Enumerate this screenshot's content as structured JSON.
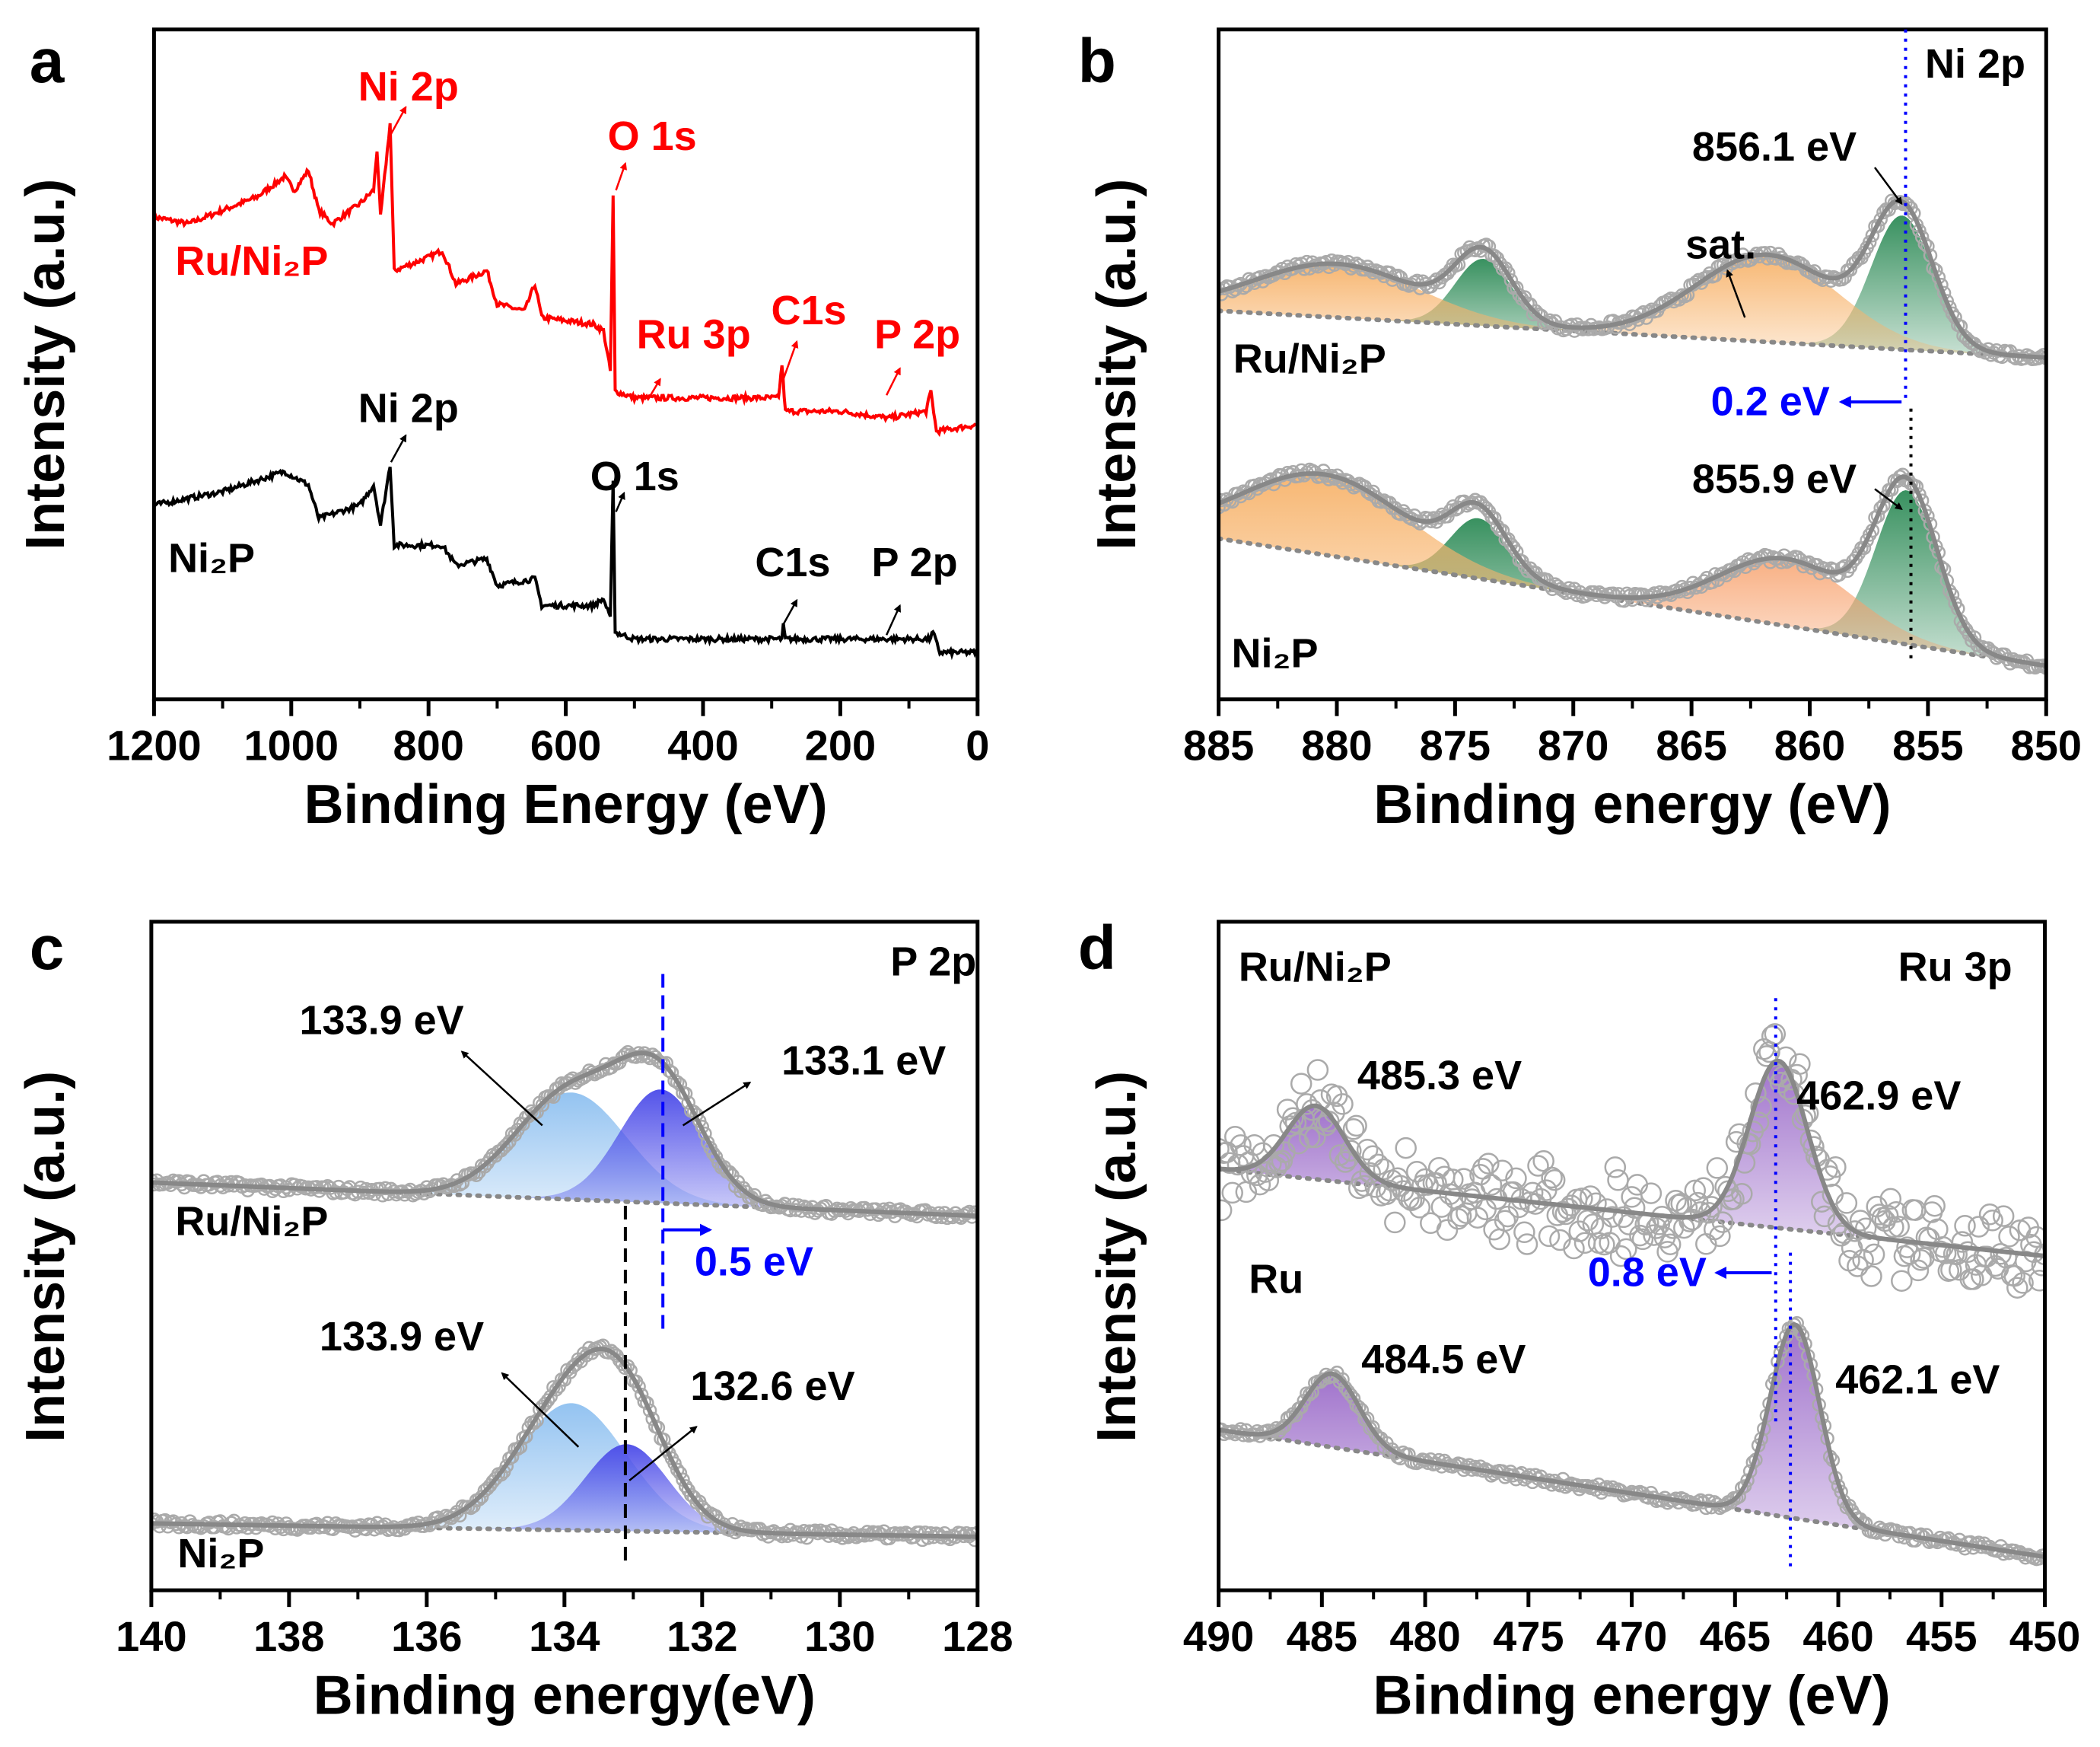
{
  "chart_data": [
    {
      "panel": "a",
      "type": "line",
      "title": "",
      "xlabel": "Binding Energy (eV)",
      "ylabel": "Intensity (a.u.)",
      "xlim": [
        1200,
        0
      ],
      "ylim": [
        0,
        1
      ],
      "xticks": [
        1200,
        1000,
        800,
        600,
        400,
        200,
        0
      ],
      "xminor": 100,
      "grid": false,
      "series": [
        {
          "name": "Ru/Ni₂P",
          "color": "#ff0000",
          "points": [
            [
              1200,
              0.72
            ],
            [
              1150,
              0.71
            ],
            [
              1100,
              0.73
            ],
            [
              1050,
              0.75
            ],
            [
              1010,
              0.78
            ],
            [
              995,
              0.76
            ],
            [
              975,
              0.79
            ],
            [
              960,
              0.73
            ],
            [
              940,
              0.71
            ],
            [
              900,
              0.74
            ],
            [
              880,
              0.76
            ],
            [
              875,
              0.82
            ],
            [
              870,
              0.72
            ],
            [
              862,
              0.8
            ],
            [
              856,
              0.86
            ],
            [
              850,
              0.64
            ],
            [
              800,
              0.66
            ],
            [
              780,
              0.67
            ],
            [
              760,
              0.62
            ],
            [
              715,
              0.64
            ],
            [
              700,
              0.59
            ],
            [
              660,
              0.58
            ],
            [
              645,
              0.62
            ],
            [
              635,
              0.57
            ],
            [
              560,
              0.56
            ],
            [
              545,
              0.55
            ],
            [
              535,
              0.49
            ],
            [
              531,
              0.75
            ],
            [
              528,
              0.46
            ],
            [
              500,
              0.45
            ],
            [
              290,
              0.45
            ],
            [
              285,
              0.5
            ],
            [
              280,
              0.43
            ],
            [
              200,
              0.43
            ],
            [
              130,
              0.42
            ],
            [
              75,
              0.43
            ],
            [
              68,
              0.46
            ],
            [
              60,
              0.4
            ],
            [
              0,
              0.41
            ]
          ]
        },
        {
          "name": "Ni₂P",
          "color": "#000000",
          "points": [
            [
              1200,
              0.29
            ],
            [
              1100,
              0.31
            ],
            [
              1010,
              0.34
            ],
            [
              975,
              0.32
            ],
            [
              960,
              0.27
            ],
            [
              900,
              0.29
            ],
            [
              880,
              0.32
            ],
            [
              870,
              0.26
            ],
            [
              856,
              0.35
            ],
            [
              850,
              0.23
            ],
            [
              780,
              0.23
            ],
            [
              760,
              0.2
            ],
            [
              715,
              0.21
            ],
            [
              700,
              0.17
            ],
            [
              645,
              0.18
            ],
            [
              635,
              0.14
            ],
            [
              560,
              0.14
            ],
            [
              545,
              0.15
            ],
            [
              535,
              0.12
            ],
            [
              531,
              0.33
            ],
            [
              528,
              0.1
            ],
            [
              500,
              0.09
            ],
            [
              285,
              0.09
            ],
            [
              283,
              0.11
            ],
            [
              280,
              0.09
            ],
            [
              70,
              0.09
            ],
            [
              65,
              0.1
            ],
            [
              55,
              0.07
            ],
            [
              0,
              0.07
            ]
          ]
        }
      ],
      "annotations": [
        "Ni 2p",
        "O 1s",
        "Ru/Ni₂P",
        "Ru 3p",
        "C1s",
        "P 2p",
        "Ni 2p",
        "O 1s",
        "Ni₂P",
        "C1s",
        "P 2p"
      ]
    },
    {
      "panel": "b",
      "type": "area",
      "xlabel": "Binding energy (eV)",
      "ylabel": "Intensity (a.u.)",
      "xlim": [
        885,
        850
      ],
      "ylim": [
        0,
        1
      ],
      "xticks": [
        885,
        880,
        875,
        870,
        865,
        860,
        855,
        850
      ],
      "xminor": 2.5,
      "grid": false,
      "spectra": [
        {
          "name": "Ru/Ni₂P",
          "baseline": [
            [
              885,
              0.58
            ],
            [
              850,
              0.51
            ]
          ],
          "components": [
            {
              "center": 856.1,
              "amp": 0.2,
              "sigma": 1.3,
              "color": "#2e8b57"
            },
            {
              "center": 861.8,
              "amp": 0.13,
              "sigma": 3.0,
              "color": "#f7b36b"
            },
            {
              "center": 873.8,
              "amp": 0.1,
              "sigma": 1.2,
              "color": "#2e8b57"
            },
            {
              "center": 880.0,
              "amp": 0.08,
              "sigma": 3.5,
              "color": "#f7b36b"
            }
          ]
        },
        {
          "name": "Ni₂P",
          "baseline": [
            [
              885,
              0.24
            ],
            [
              850,
              0.05
            ]
          ],
          "components": [
            {
              "center": 855.9,
              "amp": 0.23,
              "sigma": 1.3,
              "color": "#2e8b57"
            },
            {
              "center": 861.0,
              "amp": 0.1,
              "sigma": 2.8,
              "color": "#f7a06b"
            },
            {
              "center": 874.0,
              "amp": 0.09,
              "sigma": 1.2,
              "color": "#2e8b57"
            },
            {
              "center": 880.5,
              "amp": 0.12,
              "sigma": 3.5,
              "color": "#f7b36b"
            }
          ]
        }
      ],
      "annotations": [
        "Ni 2p",
        "856.1 eV",
        "sat.",
        "Ru/Ni₂P",
        "0.2 eV",
        "855.9 eV",
        "Ni₂P"
      ]
    },
    {
      "panel": "c",
      "type": "area",
      "xlabel": "Binding energy(eV)",
      "ylabel": "Intensity (a.u.)",
      "xlim": [
        140,
        128
      ],
      "ylim": [
        0,
        1
      ],
      "xticks": [
        140,
        138,
        136,
        134,
        132,
        130,
        128
      ],
      "xminor": 1,
      "grid": false,
      "spectra": [
        {
          "name": "Ru/Ni₂P",
          "baseline": [
            [
              140,
              0.61
            ],
            [
              128,
              0.56
            ]
          ],
          "components": [
            {
              "center": 133.9,
              "amp": 0.16,
              "sigma": 0.8,
              "color": "#8ec0f0"
            },
            {
              "center": 132.6,
              "amp": 0.17,
              "sigma": 0.6,
              "color": "#4a4ae8"
            }
          ]
        },
        {
          "name": "Ni₂P",
          "baseline": [
            [
              140,
              0.1
            ],
            [
              128,
              0.08
            ]
          ],
          "components": [
            {
              "center": 133.9,
              "amp": 0.19,
              "sigma": 0.8,
              "color": "#8ec0f0"
            },
            {
              "center": 133.1,
              "amp": 0.13,
              "sigma": 0.6,
              "color": "#4a4ae8"
            }
          ]
        }
      ],
      "annotations": [
        "P 2p",
        "133.9 eV",
        "133.1 eV",
        "Ru/Ni₂P",
        "0.5 eV",
        "133.9 eV",
        "132.6 eV",
        "Ni₂P"
      ]
    },
    {
      "panel": "d",
      "type": "area",
      "xlabel": "Binding energy (eV)",
      "ylabel": "Intensity (a.u.)",
      "xlim": [
        490,
        450
      ],
      "ylim": [
        0,
        1
      ],
      "xticks": [
        490,
        485,
        480,
        475,
        470,
        465,
        460,
        455,
        450
      ],
      "xminor": 2.5,
      "grid": false,
      "spectra": [
        {
          "name": "Ru/Ni₂P",
          "baseline": [
            [
              490,
              0.63
            ],
            [
              450,
              0.5
            ]
          ],
          "noise": 0.035,
          "components": [
            {
              "center": 485.3,
              "amp": 0.11,
              "sigma": 1.4,
              "color": "#9b6bc9"
            },
            {
              "center": 462.9,
              "amp": 0.25,
              "sigma": 1.4,
              "color": "#9b6bc9"
            }
          ]
        },
        {
          "name": "Ru",
          "baseline": [
            [
              490,
              0.24
            ],
            [
              450,
              0.05
            ]
          ],
          "components": [
            {
              "center": 484.5,
              "amp": 0.11,
              "sigma": 1.3,
              "color": "#9b6bc9"
            },
            {
              "center": 462.1,
              "amp": 0.29,
              "sigma": 1.2,
              "color": "#9b6bc9"
            }
          ]
        }
      ],
      "annotations": [
        "Ru/Ni₂P",
        "Ru 3p",
        "485.3 eV",
        "462.9 eV",
        "Ru",
        "0.8 eV",
        "484.5 eV",
        "462.1 eV"
      ]
    }
  ],
  "panel_labels": [
    "a",
    "b",
    "c",
    "d"
  ],
  "colors": {
    "shift_marker": "#0000ff",
    "data_points": "#aaaaaa",
    "envelope": "#888888"
  }
}
